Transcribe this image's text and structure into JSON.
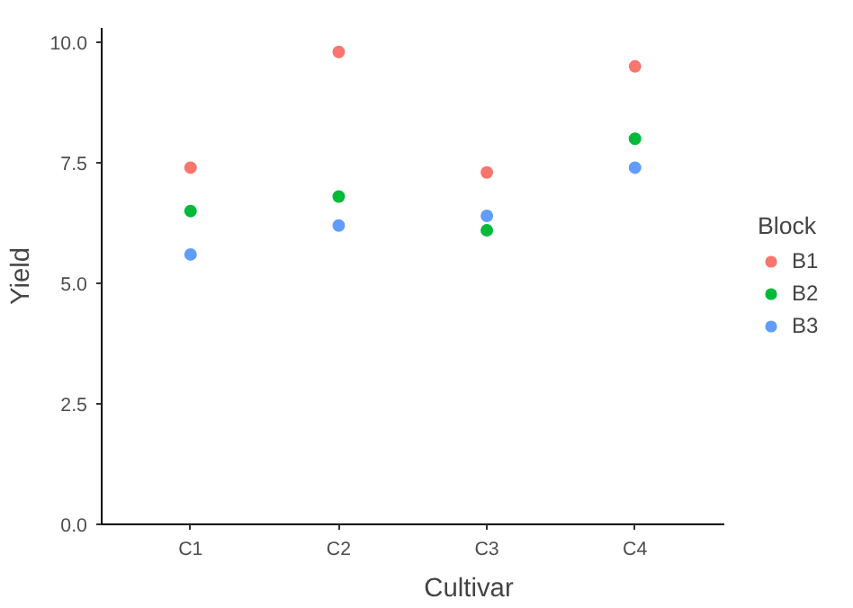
{
  "chart_data": {
    "type": "scatter",
    "xlabel": "Cultivar",
    "ylabel": "Yield",
    "legend_title": "Block",
    "categories": [
      "C1",
      "C2",
      "C3",
      "C4"
    ],
    "series": [
      {
        "name": "B1",
        "color": "#f8766d",
        "values": [
          7.4,
          9.8,
          7.3,
          9.5
        ]
      },
      {
        "name": "B2",
        "color": "#00ba38",
        "values": [
          6.5,
          6.8,
          6.1,
          8.0
        ]
      },
      {
        "name": "B3",
        "color": "#619cff",
        "values": [
          5.6,
          6.2,
          6.4,
          7.4
        ]
      }
    ],
    "ylim": [
      0,
      10.3
    ],
    "yticks": [
      {
        "value": 0,
        "label": "0.0"
      },
      {
        "value": 2.5,
        "label": "2.5"
      },
      {
        "value": 5,
        "label": "5.0"
      },
      {
        "value": 7.5,
        "label": "7.5"
      },
      {
        "value": 10,
        "label": "10.0"
      }
    ],
    "grid": false,
    "legend": "right",
    "marker": "circle"
  }
}
